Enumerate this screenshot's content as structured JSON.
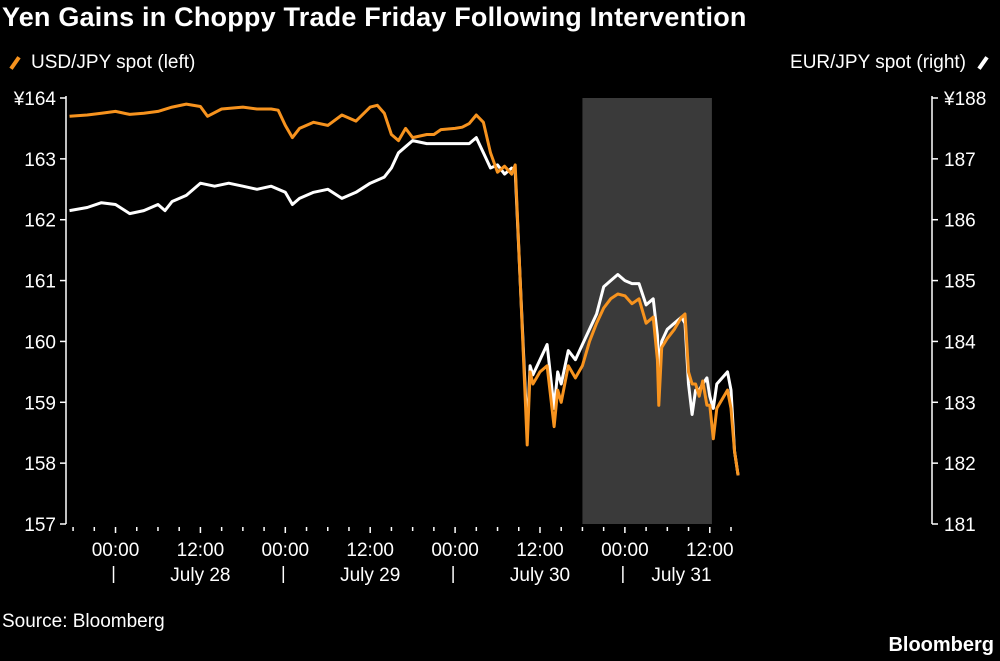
{
  "title": "Yen Gains in Choppy Trade Friday Following Intervention",
  "source": "Source: Bloomberg",
  "brand": "Bloomberg",
  "colors": {
    "usdjpy": "#f7931e",
    "eurjpy": "#ffffff",
    "shade": "#3a3a3a",
    "background": "#000000"
  },
  "chart_data": {
    "type": "line",
    "x_unit": "hours from July 28 00:00",
    "xlim": [
      -7,
      114
    ],
    "x_ticks": [
      {
        "x": 0,
        "label": "00:00"
      },
      {
        "x": 12,
        "label": "12:00"
      },
      {
        "x": 24,
        "label": "00:00"
      },
      {
        "x": 36,
        "label": "12:00"
      },
      {
        "x": 48,
        "label": "00:00"
      },
      {
        "x": 60,
        "label": "12:00"
      },
      {
        "x": 72,
        "label": "00:00"
      },
      {
        "x": 84,
        "label": "12:00"
      }
    ],
    "day_labels": [
      {
        "x": 12,
        "label": "July 28"
      },
      {
        "x": 36,
        "label": "July 29"
      },
      {
        "x": 60,
        "label": "July 30"
      },
      {
        "x": 80,
        "label": "July 31"
      }
    ],
    "day_separators": [
      0,
      24,
      48,
      72
    ],
    "shaded_range": [
      66,
      84.3
    ],
    "left_axis": {
      "ylim": [
        157,
        164
      ],
      "ticks": [
        "¥164",
        "163",
        "162",
        "161",
        "160",
        "159",
        "158",
        "157"
      ]
    },
    "right_axis": {
      "ylim": [
        181,
        188
      ],
      "ticks": [
        "¥188",
        "187",
        "186",
        "185",
        "184",
        "183",
        "182",
        "181"
      ]
    },
    "series": [
      {
        "name": "USD/JPY spot (left)",
        "axis": "left",
        "points": [
          [
            -6.5,
            163.7
          ],
          [
            -4,
            163.72
          ],
          [
            -2,
            163.75
          ],
          [
            0,
            163.78
          ],
          [
            2,
            163.73
          ],
          [
            4,
            163.75
          ],
          [
            6,
            163.78
          ],
          [
            8,
            163.85
          ],
          [
            10,
            163.9
          ],
          [
            12,
            163.86
          ],
          [
            13,
            163.7
          ],
          [
            15,
            163.82
          ],
          [
            18,
            163.85
          ],
          [
            20,
            163.82
          ],
          [
            22,
            163.82
          ],
          [
            23,
            163.8
          ],
          [
            24,
            163.55
          ],
          [
            25,
            163.35
          ],
          [
            26,
            163.5
          ],
          [
            28,
            163.6
          ],
          [
            30,
            163.55
          ],
          [
            32,
            163.72
          ],
          [
            34,
            163.62
          ],
          [
            36,
            163.85
          ],
          [
            37,
            163.88
          ],
          [
            38,
            163.75
          ],
          [
            39,
            163.4
          ],
          [
            40,
            163.3
          ],
          [
            41,
            163.5
          ],
          [
            42,
            163.35
          ],
          [
            44,
            163.4
          ],
          [
            45,
            163.4
          ],
          [
            46,
            163.48
          ],
          [
            48,
            163.5
          ],
          [
            49,
            163.52
          ],
          [
            50,
            163.58
          ],
          [
            51,
            163.72
          ],
          [
            52,
            163.6
          ],
          [
            53,
            163.1
          ],
          [
            54,
            162.78
          ],
          [
            55,
            162.88
          ],
          [
            56,
            162.75
          ],
          [
            56.5,
            162.9
          ],
          [
            57.2,
            161.0
          ],
          [
            58.2,
            158.3
          ],
          [
            58.6,
            159.5
          ],
          [
            59,
            159.3
          ],
          [
            60,
            159.5
          ],
          [
            61,
            159.6
          ],
          [
            62,
            158.6
          ],
          [
            62.5,
            159.2
          ],
          [
            63,
            159
          ],
          [
            64,
            159.6
          ],
          [
            65,
            159.4
          ],
          [
            66,
            159.6
          ],
          [
            67,
            160
          ],
          [
            68,
            160.3
          ],
          [
            69,
            160.55
          ],
          [
            70,
            160.7
          ],
          [
            71,
            160.78
          ],
          [
            72,
            160.75
          ],
          [
            73,
            160.62
          ],
          [
            74,
            160.7
          ],
          [
            75,
            160.3
          ],
          [
            76,
            160.4
          ],
          [
            76.6,
            159.7
          ],
          [
            76.8,
            158.95
          ],
          [
            77.2,
            159.9
          ],
          [
            78,
            160.05
          ],
          [
            79,
            160.2
          ],
          [
            80,
            160.4
          ],
          [
            80.5,
            160.45
          ],
          [
            81,
            159.5
          ],
          [
            81.5,
            159.3
          ],
          [
            82,
            159.3
          ],
          [
            82.5,
            159.1
          ],
          [
            83,
            159.35
          ],
          [
            83.6,
            158.95
          ],
          [
            84,
            158.95
          ],
          [
            84.5,
            158.4
          ],
          [
            85,
            158.9
          ],
          [
            86.5,
            159.2
          ],
          [
            87,
            158.9
          ],
          [
            87.5,
            158.2
          ],
          [
            88,
            157.8
          ]
        ]
      },
      {
        "name": "EUR/JPY spot (right)",
        "axis": "right",
        "points": [
          [
            -6.5,
            186.15
          ],
          [
            -4,
            186.2
          ],
          [
            -2,
            186.28
          ],
          [
            0,
            186.25
          ],
          [
            2,
            186.1
          ],
          [
            4,
            186.15
          ],
          [
            6,
            186.25
          ],
          [
            7,
            186.15
          ],
          [
            8,
            186.3
          ],
          [
            10,
            186.4
          ],
          [
            12,
            186.6
          ],
          [
            14,
            186.55
          ],
          [
            16,
            186.6
          ],
          [
            18,
            186.55
          ],
          [
            20,
            186.5
          ],
          [
            22,
            186.55
          ],
          [
            24,
            186.45
          ],
          [
            25,
            186.25
          ],
          [
            26,
            186.35
          ],
          [
            28,
            186.45
          ],
          [
            30,
            186.5
          ],
          [
            32,
            186.35
          ],
          [
            34,
            186.45
          ],
          [
            36,
            186.6
          ],
          [
            38,
            186.7
          ],
          [
            39,
            186.85
          ],
          [
            40,
            187.1
          ],
          [
            41,
            187.2
          ],
          [
            42,
            187.3
          ],
          [
            44,
            187.25
          ],
          [
            46,
            187.25
          ],
          [
            48,
            187.25
          ],
          [
            50,
            187.25
          ],
          [
            51,
            187.35
          ],
          [
            52,
            187.1
          ],
          [
            53,
            186.85
          ],
          [
            54,
            186.9
          ],
          [
            55,
            186.75
          ],
          [
            56,
            186.85
          ],
          [
            56.5,
            186.8
          ],
          [
            57.2,
            185.0
          ],
          [
            58.2,
            182.5
          ],
          [
            58.6,
            183.6
          ],
          [
            59,
            183.45
          ],
          [
            60,
            183.7
          ],
          [
            61,
            183.95
          ],
          [
            62,
            182.9
          ],
          [
            62.5,
            183.5
          ],
          [
            63,
            183.3
          ],
          [
            64,
            183.85
          ],
          [
            65,
            183.7
          ],
          [
            66,
            183.95
          ],
          [
            67,
            184.2
          ],
          [
            68,
            184.45
          ],
          [
            69,
            184.9
          ],
          [
            70,
            185.0
          ],
          [
            71,
            185.1
          ],
          [
            72,
            185.0
          ],
          [
            73,
            184.95
          ],
          [
            74,
            184.95
          ],
          [
            75,
            184.6
          ],
          [
            76,
            184.7
          ],
          [
            76.6,
            184.1
          ],
          [
            76.8,
            183.5
          ],
          [
            77.2,
            184.0
          ],
          [
            78,
            184.2
          ],
          [
            79,
            184.3
          ],
          [
            80,
            184.4
          ],
          [
            80.5,
            184.3
          ],
          [
            81,
            183.3
          ],
          [
            81.5,
            182.8
          ],
          [
            82,
            183.2
          ],
          [
            82.5,
            183.2
          ],
          [
            83,
            183.3
          ],
          [
            83.6,
            183.4
          ],
          [
            84,
            183.1
          ],
          [
            84.5,
            182.9
          ],
          [
            85,
            183.3
          ],
          [
            86.5,
            183.5
          ],
          [
            87,
            183.2
          ],
          [
            87.5,
            182.2
          ],
          [
            88,
            181.8
          ]
        ]
      }
    ]
  }
}
